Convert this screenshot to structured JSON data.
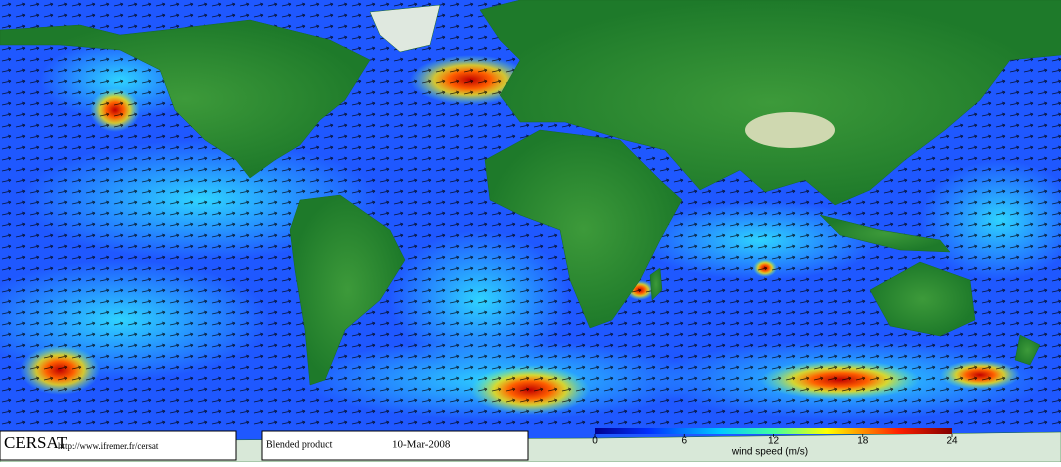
{
  "header": {
    "logo": "CERSAT",
    "url": "http://www.ifremer.fr/cersat"
  },
  "product": {
    "name": "Blended product",
    "date": "10-Mar-2008"
  },
  "colorbar": {
    "label": "wind speed (m/s)",
    "range": [
      0,
      24
    ],
    "ticks": [
      0,
      6,
      12,
      18,
      24
    ]
  }
}
